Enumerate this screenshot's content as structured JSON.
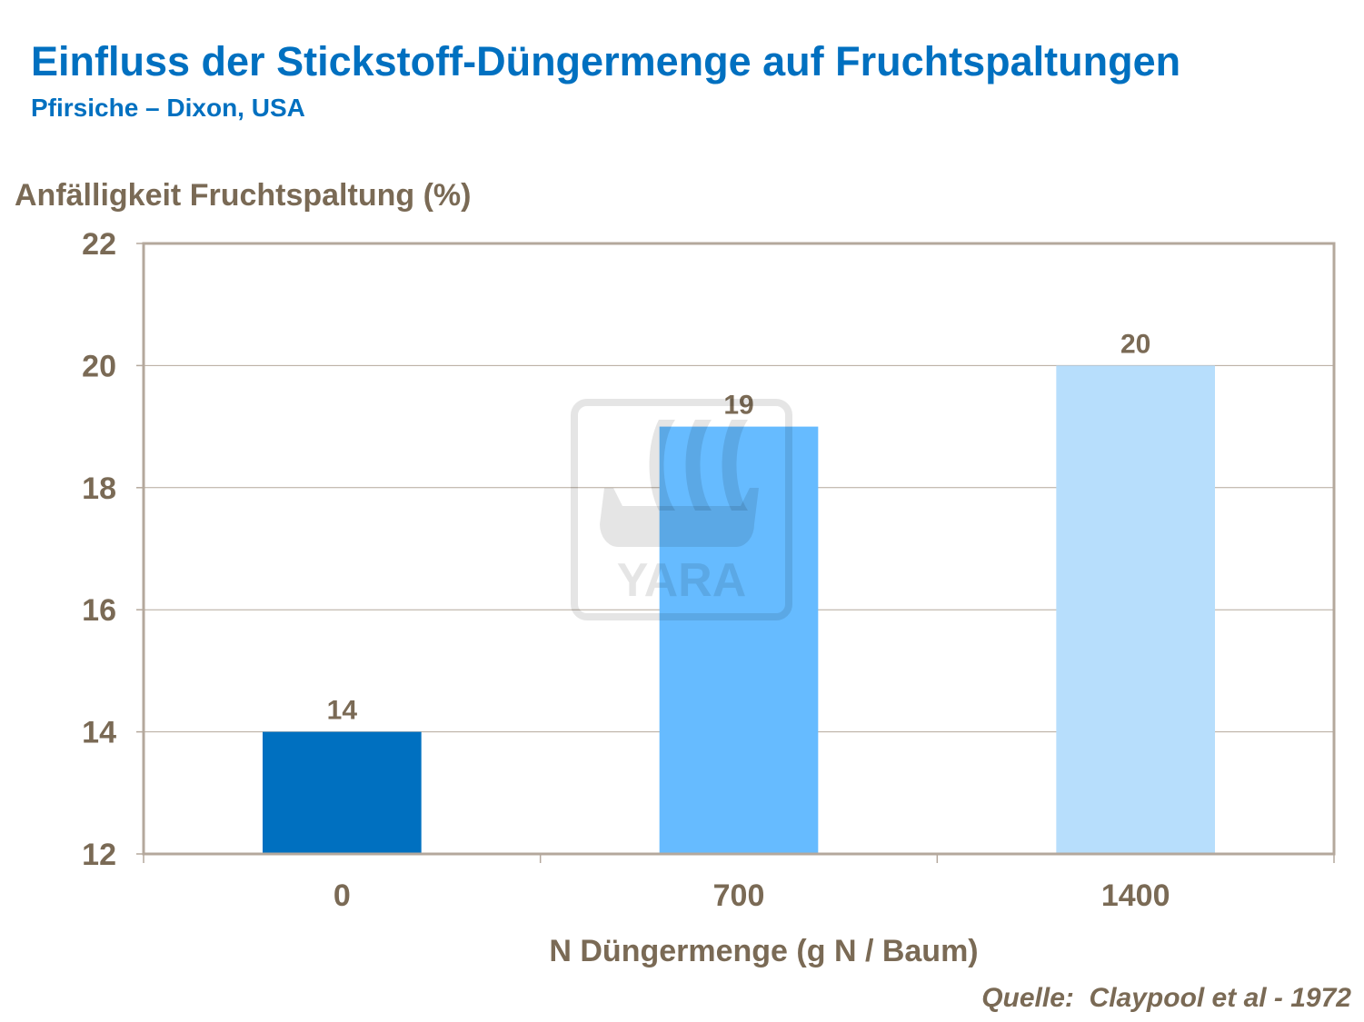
{
  "title": "Einfluss der Stickstoff-Düngermenge auf Fruchtspaltungen",
  "subtitle": "Pfirsiche – Dixon, USA",
  "source": "Quelle:  Claypool et al - 1972",
  "watermark": "YARA",
  "chart_data": {
    "type": "bar",
    "categories": [
      "0",
      "700",
      "1400"
    ],
    "values": [
      14,
      19,
      20
    ],
    "data_labels": [
      "14",
      "19",
      "20"
    ],
    "colors": [
      "#0070c0",
      "#66bbff",
      "#b7defc"
    ],
    "xlabel": "N Düngermenge (g N / Baum)",
    "ylabel": "Anfälligkeit Fruchtspaltung (%)",
    "ylim": [
      12,
      22
    ],
    "yticks": [
      12,
      14,
      16,
      18,
      20,
      22
    ],
    "grid": true
  }
}
